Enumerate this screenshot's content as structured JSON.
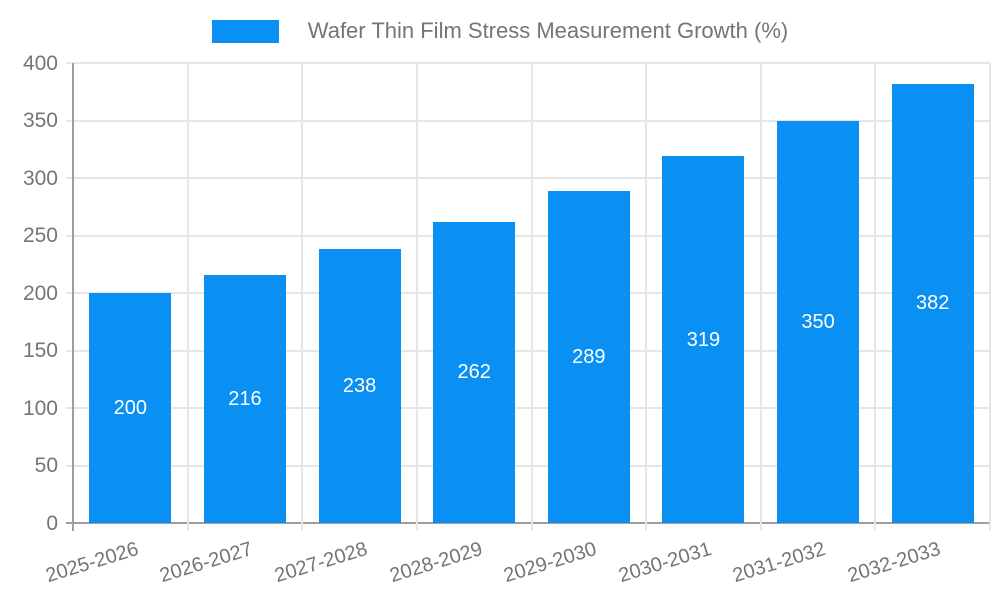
{
  "chart_data": {
    "type": "bar",
    "title": "Wafer Thin Film Stress Measurement Growth (%)",
    "categories": [
      "2025-2026",
      "2026-2027",
      "2027-2028",
      "2028-2029",
      "2029-2030",
      "2030-2031",
      "2031-2032",
      "2032-2033"
    ],
    "values": [
      200,
      216,
      238,
      262,
      289,
      319,
      350,
      382
    ],
    "xlabel": "",
    "ylabel": "",
    "ylim": [
      0,
      400
    ],
    "yticks": [
      0,
      50,
      100,
      150,
      200,
      250,
      300,
      350,
      400
    ],
    "legend_position": "top",
    "grid": true,
    "colors": {
      "bar": "#0a8ff2",
      "value_label": "#ffffff",
      "axis_text": "#757575",
      "grid_line": "#e6e6e6",
      "axis_line": "#9e9e9e"
    }
  }
}
